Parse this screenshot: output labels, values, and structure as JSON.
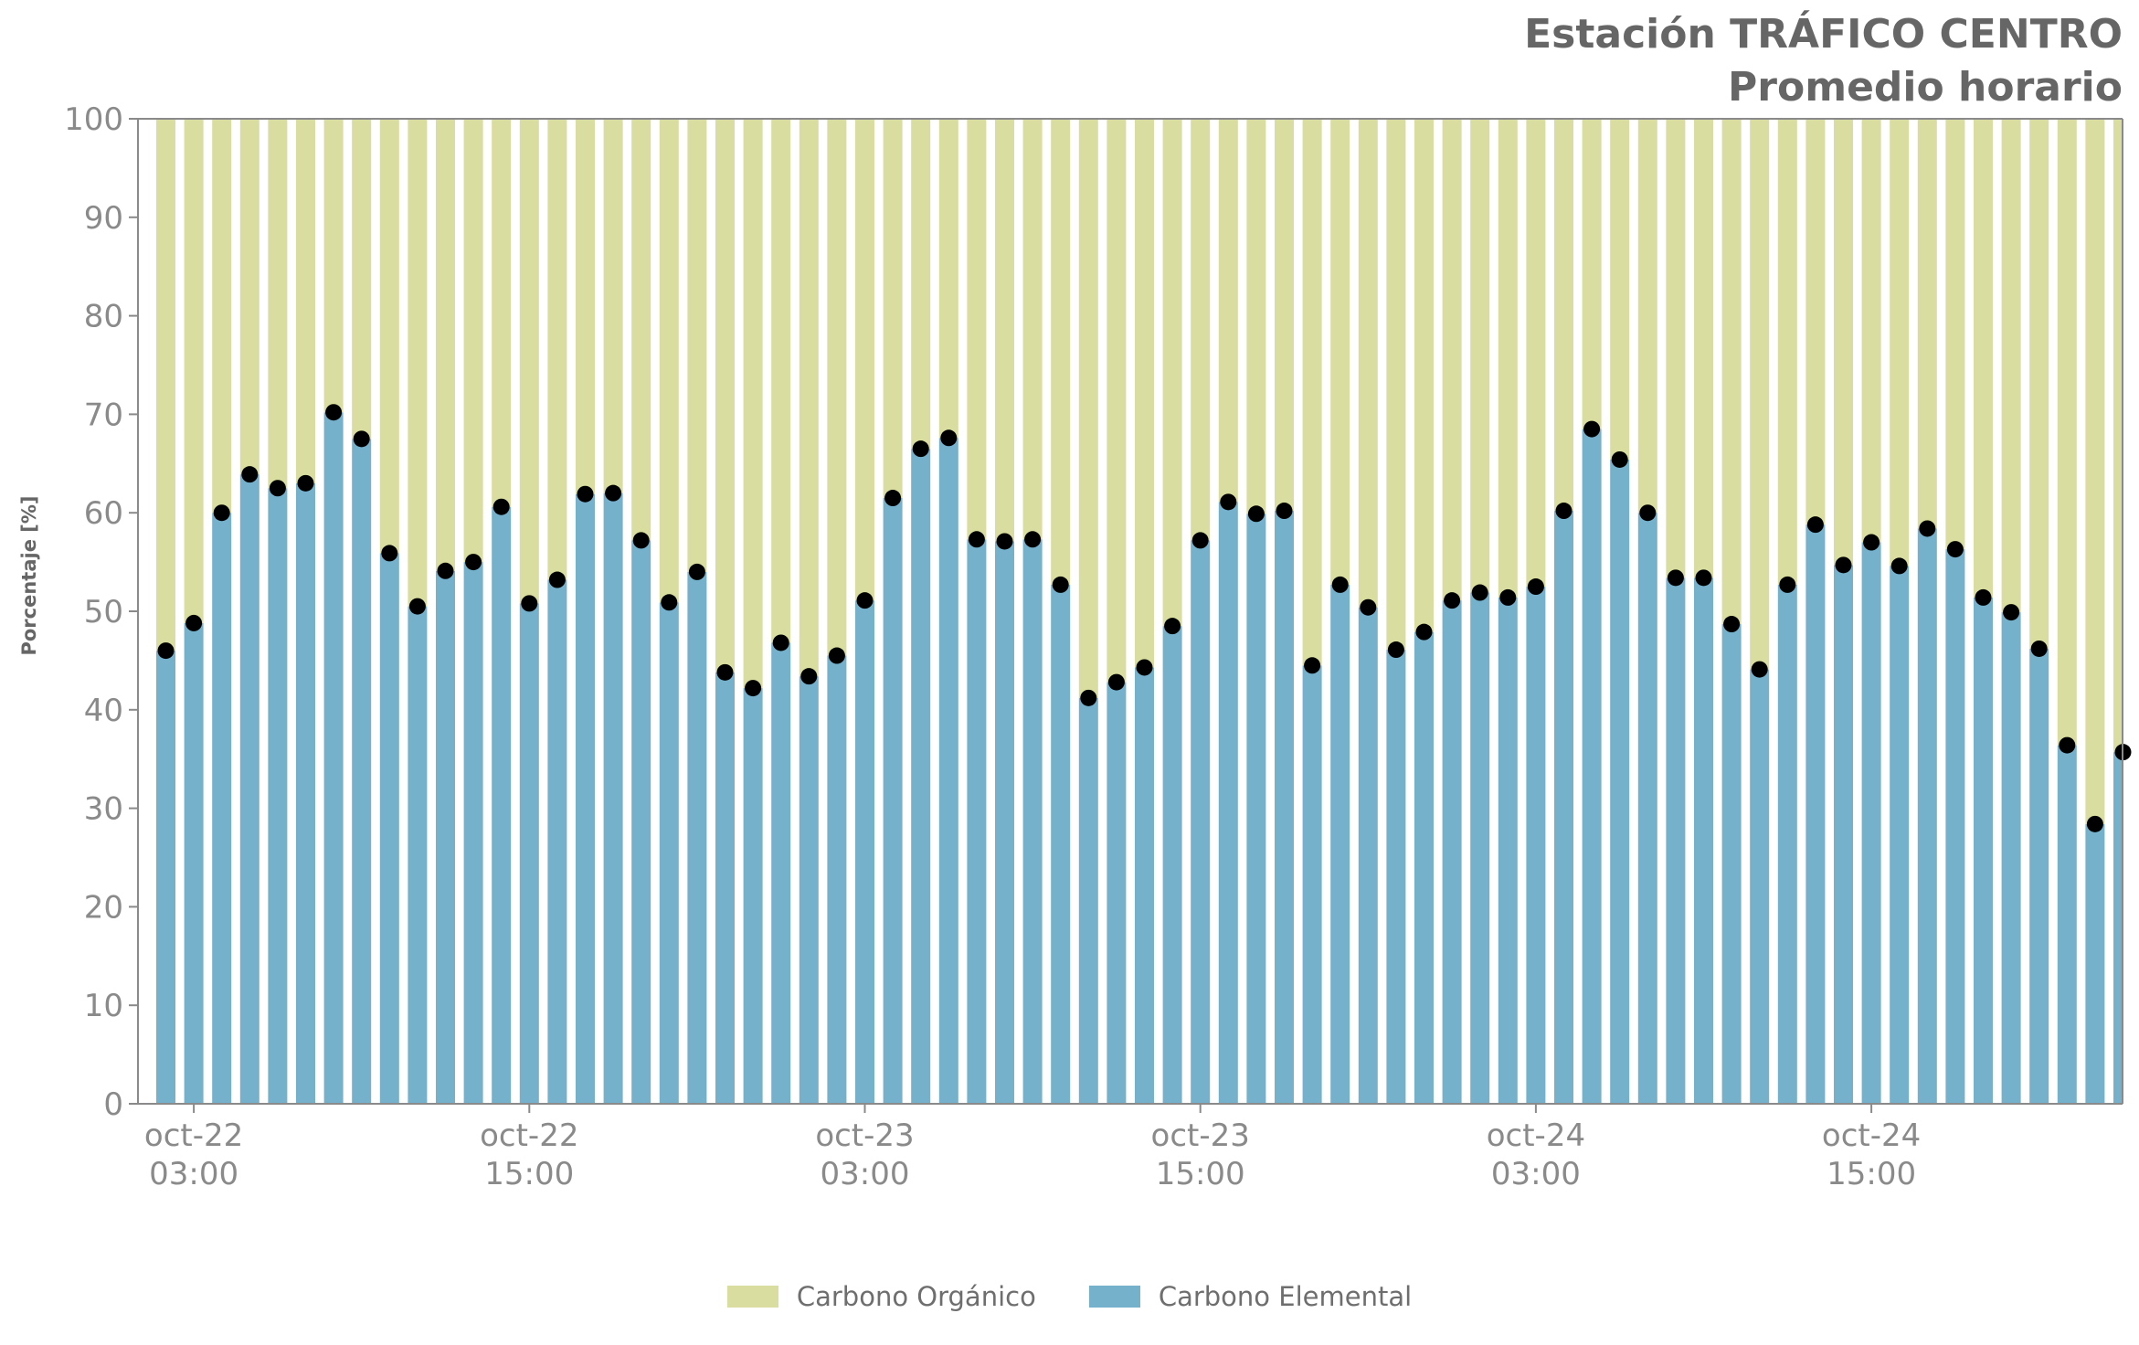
{
  "title": "Estación TRÁFICO CENTRO",
  "subtitle": "Promedio horario",
  "colors": {
    "organic": "#d9dd9f",
    "elemental": "#76b1cc",
    "marker": "#000000",
    "axis": "#8a8a8a"
  },
  "legend": [
    {
      "label": "Carbono Orgánico",
      "color": "#d9dd9f"
    },
    {
      "label": "Carbono Elemental",
      "color": "#76b1cc"
    }
  ],
  "chart_data": {
    "type": "bar",
    "stacked": true,
    "title": "Estación TRÁFICO CENTRO",
    "subtitle": "Promedio horario",
    "ylabel": "Porcentaje [%]",
    "xlabel": "",
    "ylim": [
      0,
      100
    ],
    "yticks": [
      0,
      10,
      20,
      30,
      40,
      50,
      60,
      70,
      80,
      90,
      100
    ],
    "grid": false,
    "legend_position": "bottom",
    "xtick_labels": [
      {
        "index": 1,
        "line1": "oct-22",
        "line2": "03:00"
      },
      {
        "index": 13,
        "line1": "oct-22",
        "line2": "15:00"
      },
      {
        "index": 25,
        "line1": "oct-23",
        "line2": "03:00"
      },
      {
        "index": 37,
        "line1": "oct-23",
        "line2": "15:00"
      },
      {
        "index": 49,
        "line1": "oct-24",
        "line2": "03:00"
      },
      {
        "index": 61,
        "line1": "oct-24",
        "line2": "15:00"
      }
    ],
    "series": [
      {
        "name": "Carbono Elemental",
        "marker": "dot",
        "values": [
          46.0,
          48.8,
          60.0,
          63.9,
          62.5,
          63.0,
          70.2,
          67.5,
          55.9,
          50.5,
          54.1,
          55.0,
          60.6,
          50.8,
          53.2,
          61.9,
          62.0,
          57.2,
          50.9,
          54.0,
          43.8,
          42.2,
          46.8,
          43.4,
          45.5,
          51.1,
          61.5,
          66.5,
          67.6,
          57.3,
          57.1,
          57.3,
          52.7,
          41.2,
          42.8,
          44.3,
          48.5,
          57.2,
          61.1,
          59.9,
          60.2,
          44.5,
          52.7,
          50.4,
          46.1,
          47.9,
          51.1,
          51.9,
          51.4,
          52.5,
          60.2,
          68.5,
          65.4,
          60.0,
          53.4,
          53.4,
          48.7,
          44.1,
          52.7,
          58.8,
          54.7,
          57.0,
          54.6,
          58.4,
          56.3,
          51.4,
          49.9,
          46.2,
          36.4,
          28.4,
          35.7
        ]
      },
      {
        "name": "Carbono Orgánico",
        "values": [
          54.0,
          51.2,
          40.0,
          36.1,
          37.5,
          37.0,
          29.8,
          32.5,
          44.1,
          49.5,
          45.9,
          45.0,
          39.4,
          49.2,
          46.8,
          38.1,
          38.0,
          42.8,
          49.1,
          46.0,
          56.2,
          57.8,
          53.2,
          56.6,
          54.5,
          48.9,
          38.5,
          33.5,
          32.4,
          42.7,
          42.9,
          42.7,
          47.3,
          58.8,
          57.2,
          55.7,
          51.5,
          42.8,
          38.9,
          40.1,
          39.8,
          55.5,
          47.3,
          49.6,
          53.9,
          52.1,
          48.9,
          48.1,
          48.6,
          47.5,
          39.8,
          31.5,
          34.6,
          40.0,
          46.6,
          46.6,
          51.3,
          55.9,
          47.3,
          41.2,
          45.3,
          43.0,
          45.4,
          41.6,
          43.7,
          48.6,
          50.1,
          53.8,
          63.6,
          71.6,
          64.3
        ]
      }
    ]
  }
}
